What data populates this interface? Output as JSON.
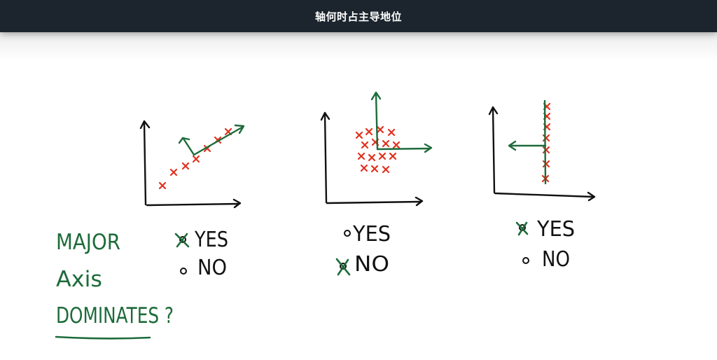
{
  "header": {
    "title": "轴何时占主导地位"
  },
  "question": {
    "line1": "MAJOR",
    "line2": "Axis",
    "line3": "DOMINATES ?"
  },
  "panels": [
    {
      "yes_label": "YES",
      "no_label": "NO",
      "selected": "yes"
    },
    {
      "yes_label": "YES",
      "no_label": "NO",
      "selected": "no"
    },
    {
      "yes_label": "YES",
      "no_label": "NO",
      "selected": "yes"
    }
  ],
  "colors": {
    "header_bg": "#1c252e",
    "ink": "#111111",
    "green": "#1d6b3a",
    "red": "#e0321e"
  }
}
